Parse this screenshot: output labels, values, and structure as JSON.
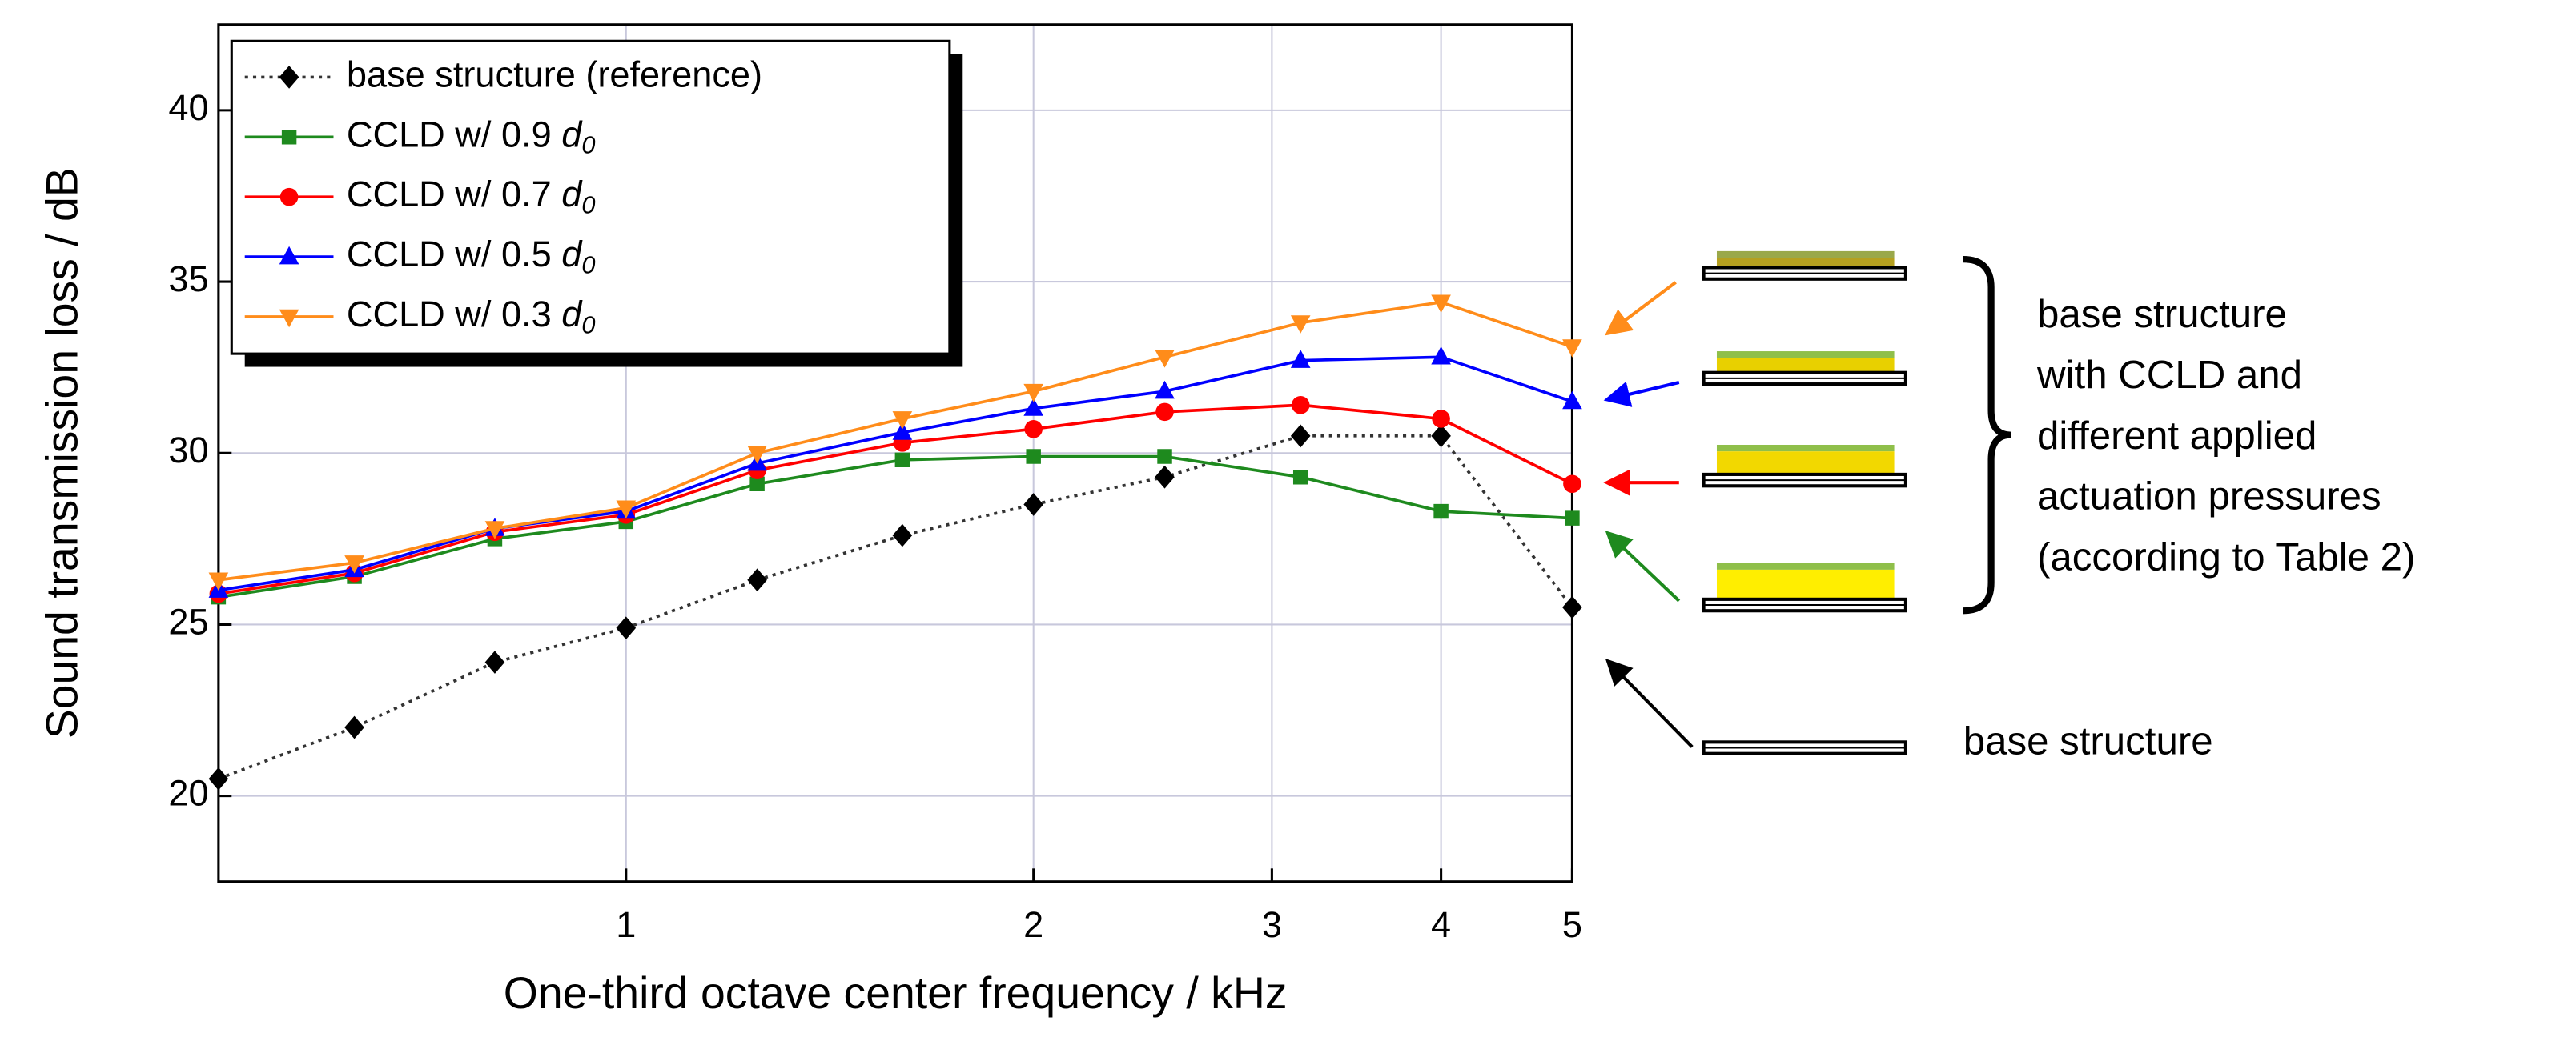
{
  "chart_data": {
    "type": "line",
    "xlabel": "One-third octave center frequency / kHz",
    "ylabel": "Sound transmission loss / dB",
    "x": [
      0.5,
      0.63,
      0.8,
      1,
      1.25,
      1.6,
      2,
      2.5,
      3.15,
      4,
      5
    ],
    "xlim": [
      0.5,
      5
    ],
    "xticks": [
      1,
      2,
      3,
      4,
      5
    ],
    "xscale": "log",
    "ylim": [
      17.5,
      42.5
    ],
    "yticks": [
      20,
      25,
      30,
      35,
      40
    ],
    "grid": true,
    "legend": "upper left",
    "series": [
      {
        "name": "base structure (reference)",
        "color": "#000000",
        "marker": "diamond",
        "linestyle": "dotted",
        "values": [
          20.5,
          22.0,
          23.9,
          24.9,
          26.3,
          27.6,
          28.5,
          29.3,
          30.5,
          30.5,
          25.5
        ]
      },
      {
        "name": "CCLD w/ 0.9 d0",
        "color": "#1e8a1e",
        "marker": "square",
        "linestyle": "solid",
        "values": [
          25.8,
          26.4,
          27.5,
          28.0,
          29.1,
          29.8,
          29.9,
          29.9,
          29.3,
          28.3,
          28.1
        ]
      },
      {
        "name": "CCLD w/ 0.7 d0",
        "color": "#ff0000",
        "marker": "circle",
        "linestyle": "solid",
        "values": [
          25.9,
          26.5,
          27.7,
          28.2,
          29.5,
          30.3,
          30.7,
          31.2,
          31.4,
          31.0,
          29.1
        ]
      },
      {
        "name": "CCLD w/ 0.5 d0",
        "color": "#0000ff",
        "marker": "triangle-up",
        "linestyle": "solid",
        "values": [
          26.0,
          26.6,
          27.8,
          28.3,
          29.7,
          30.6,
          31.3,
          31.8,
          32.7,
          32.8,
          31.5
        ]
      },
      {
        "name": "CCLD w/ 0.3 d0",
        "color": "#ff8c1a",
        "marker": "triangle-down",
        "linestyle": "solid",
        "values": [
          26.3,
          26.8,
          27.8,
          28.4,
          30.0,
          31.0,
          31.8,
          32.8,
          33.8,
          34.4,
          33.1
        ]
      }
    ]
  },
  "annotations": {
    "ccld_text": [
      "base structure",
      "with CCLD and",
      "different applied",
      "actuation pressures",
      "(according to Table 2)"
    ],
    "base_text": "base structure"
  }
}
